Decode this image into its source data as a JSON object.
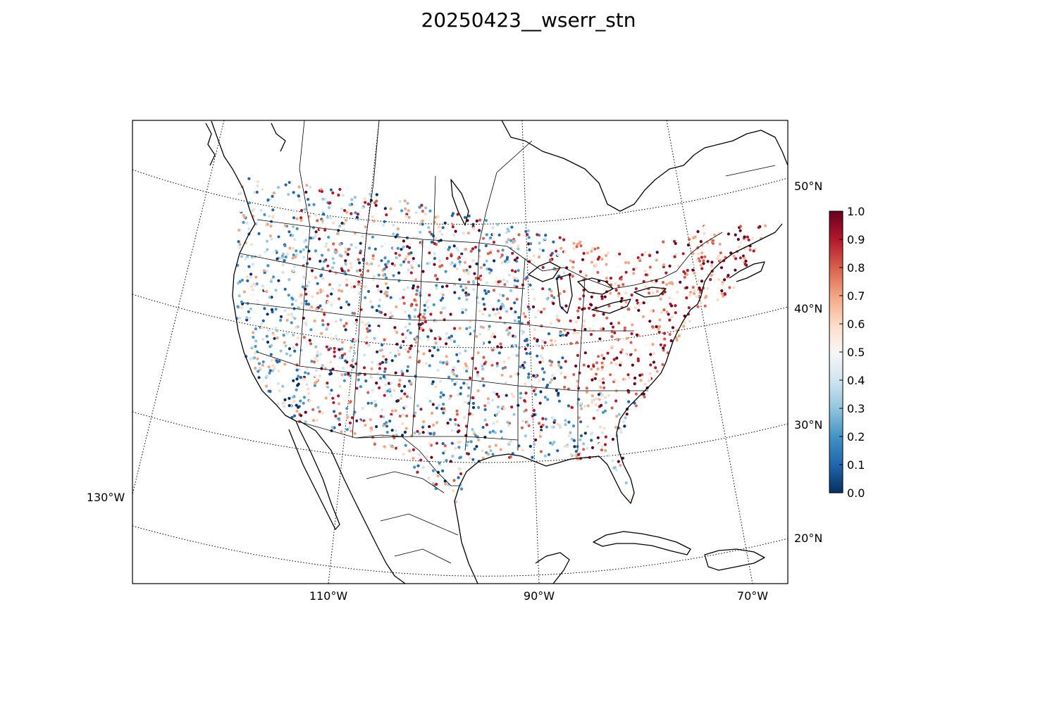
{
  "title": "20250423__wserr_stn",
  "map": {
    "projection": "lambert-conformal-conic",
    "variable": "wserr_stn",
    "colormap": "RdBu_r",
    "colormap_colors": [
      "#053061",
      "#2166ac",
      "#4393c3",
      "#92c5de",
      "#d1e5f0",
      "#f7f7f7",
      "#fddbc7",
      "#f4a582",
      "#d6604d",
      "#b2182b",
      "#67001f"
    ],
    "lon_range": [
      -130,
      -66
    ],
    "lat_range": [
      16,
      56
    ],
    "meridian_labels": [
      {
        "lon": -130,
        "text": "130°W"
      },
      {
        "lon": -110,
        "text": "110°W"
      },
      {
        "lon": -90,
        "text": "90°W"
      },
      {
        "lon": -70,
        "text": "70°W"
      }
    ],
    "parallel_labels": [
      {
        "lat": 50,
        "text": "50°N"
      },
      {
        "lat": 40,
        "text": "40°N"
      },
      {
        "lat": 30,
        "text": "30°N"
      },
      {
        "lat": 20,
        "text": "20°N"
      }
    ],
    "coastline_color": "#000000",
    "graticule_style": "dotted"
  },
  "colorbar": {
    "min": 0.0,
    "max": 1.0,
    "ticks": [
      "0.0",
      "0.1",
      "0.2",
      "0.3",
      "0.4",
      "0.5",
      "0.6",
      "0.7",
      "0.8",
      "0.9",
      "1.0"
    ]
  }
}
